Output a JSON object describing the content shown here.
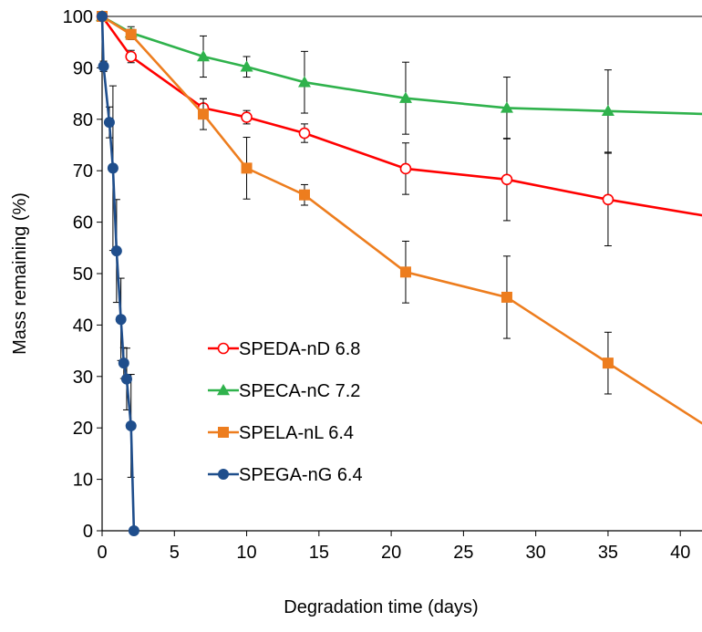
{
  "chart_data": {
    "type": "line",
    "title": "",
    "xlabel": "Degradation time (days)",
    "ylabel": "Mass remaining  (%)",
    "xlim": [
      0,
      41.5
    ],
    "ylim": [
      0,
      100
    ],
    "xticks": [
      0,
      5,
      10,
      15,
      20,
      25,
      30,
      35,
      40
    ],
    "yticks": [
      0,
      10,
      20,
      30,
      40,
      50,
      60,
      70,
      80,
      90,
      100
    ],
    "grid": false,
    "legend_position": "lower-center",
    "series": [
      {
        "name": "SPEDA-nD 6.8",
        "color": "#ff0000",
        "marker": "open-circle",
        "points": [
          {
            "x": 0,
            "y": 100
          },
          {
            "x": 2,
            "y": 92.2,
            "err": 1.2
          },
          {
            "x": 7,
            "y": 82.2,
            "err": 1.8
          },
          {
            "x": 10,
            "y": 80.4,
            "err": 1.3
          },
          {
            "x": 14,
            "y": 77.3,
            "err": 1.8
          },
          {
            "x": 21,
            "y": 70.4,
            "err": 5
          },
          {
            "x": 28,
            "y": 68.3,
            "err": 8
          },
          {
            "x": 35,
            "y": 64.4,
            "err": 9
          },
          {
            "x": 42,
            "y": 61.1
          }
        ]
      },
      {
        "name": "SPECA-nC 7.2",
        "color": "#2fb24c",
        "marker": "filled-triangle",
        "points": [
          {
            "x": 0,
            "y": 100
          },
          {
            "x": 2,
            "y": 96.8,
            "err": 1.2
          },
          {
            "x": 7,
            "y": 92.2,
            "err": 4
          },
          {
            "x": 10,
            "y": 90.2,
            "err": 2
          },
          {
            "x": 14,
            "y": 87.2,
            "err": 6
          },
          {
            "x": 21,
            "y": 84.1,
            "err": 7
          },
          {
            "x": 28,
            "y": 82.2,
            "err": 6
          },
          {
            "x": 35,
            "y": 81.6,
            "err": 8
          },
          {
            "x": 42,
            "y": 81
          }
        ]
      },
      {
        "name": "SPELA-nL 6.4",
        "color": "#ed7d1e",
        "marker": "filled-square",
        "points": [
          {
            "x": 0,
            "y": 100
          },
          {
            "x": 2,
            "y": 96.5,
            "err": 1
          },
          {
            "x": 7,
            "y": 81,
            "err": 3
          },
          {
            "x": 10,
            "y": 70.5,
            "err": 6
          },
          {
            "x": 14,
            "y": 65.3,
            "err": 2
          },
          {
            "x": 21,
            "y": 50.3,
            "err": 6
          },
          {
            "x": 28,
            "y": 45.4,
            "err": 8
          },
          {
            "x": 35,
            "y": 32.6,
            "err": 6
          },
          {
            "x": 42,
            "y": 20
          }
        ]
      },
      {
        "name": "SPEGA-nG 6.4",
        "color": "#1f4e8c",
        "marker": "filled-circle",
        "points": [
          {
            "x": 0,
            "y": 100
          },
          {
            "x": 0.1,
            "y": 90.3,
            "err": 1
          },
          {
            "x": 0.5,
            "y": 79.4,
            "err": 3
          },
          {
            "x": 0.75,
            "y": 70.5,
            "err": 16
          },
          {
            "x": 1.0,
            "y": 54.4,
            "err": 10
          },
          {
            "x": 1.3,
            "y": 41.1,
            "err": 8
          },
          {
            "x": 1.5,
            "y": 32.6,
            "err": 3
          },
          {
            "x": 1.7,
            "y": 29.5,
            "err": 6
          },
          {
            "x": 2.0,
            "y": 20.4,
            "err": 10
          },
          {
            "x": 2.2,
            "y": 0
          }
        ]
      }
    ]
  }
}
